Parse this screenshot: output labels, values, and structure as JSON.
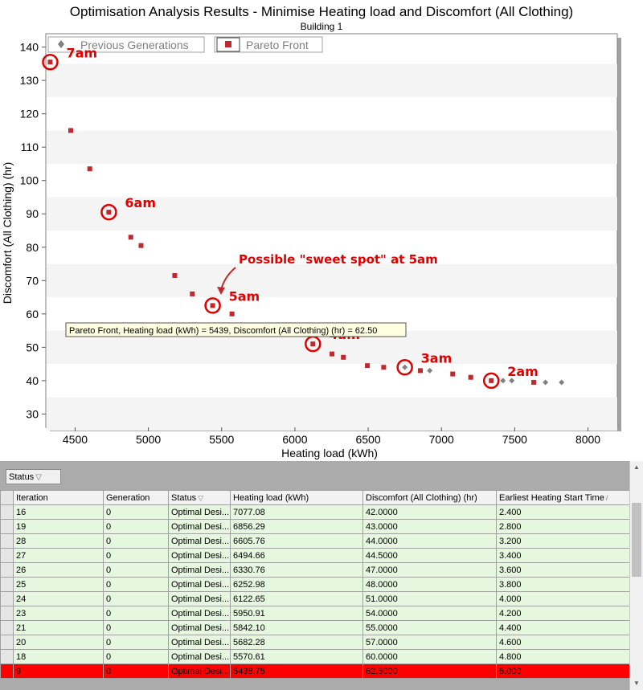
{
  "chart_data": {
    "type": "scatter",
    "title": "Optimisation Analysis Results - Minimise Heating load and Discomfort (All Clothing)",
    "subtitle": "Building 1",
    "xlabel": "Heating load (kWh)",
    "ylabel": "Discomfort (All Clothing) (hr)",
    "xlim": [
      4300,
      8200
    ],
    "ylim": [
      26,
      144
    ],
    "xticks": [
      4500,
      5000,
      5500,
      6000,
      6500,
      7000,
      7500,
      8000
    ],
    "yticks": [
      30,
      40,
      50,
      60,
      70,
      80,
      90,
      100,
      110,
      120,
      130,
      140
    ],
    "grid": "horizontal bands",
    "legend_position": "top-left",
    "legend": [
      "Previous Generations",
      "Pareto Front"
    ],
    "series": [
      {
        "name": "Previous Generations",
        "color": "#808080",
        "marker": "diamond",
        "points": [
          [
            6750,
            44
          ],
          [
            6920,
            43
          ],
          [
            7420,
            40
          ],
          [
            7480,
            40
          ],
          [
            7710,
            39.5
          ],
          [
            7820,
            39.5
          ]
        ]
      },
      {
        "name": "Pareto Front",
        "color": "#c0282d",
        "marker": "square",
        "points": [
          [
            4330,
            135.5
          ],
          [
            4470,
            115
          ],
          [
            4600,
            103.5
          ],
          [
            4730,
            90.5
          ],
          [
            4880,
            83
          ],
          [
            4950,
            80.5
          ],
          [
            5180,
            71.5
          ],
          [
            5300,
            66
          ],
          [
            5438.75,
            62.5
          ],
          [
            5570.61,
            60
          ],
          [
            5950.91,
            54
          ],
          [
            6122.65,
            51
          ],
          [
            6252.98,
            48
          ],
          [
            6330.76,
            47
          ],
          [
            6494.66,
            44.5
          ],
          [
            6605.76,
            44
          ],
          [
            6856.29,
            43
          ],
          [
            7077.08,
            42
          ],
          [
            7200,
            41
          ],
          [
            7340,
            40
          ],
          [
            7630,
            39.5
          ]
        ]
      }
    ],
    "annotations": [
      {
        "label": "7am",
        "x": 4330,
        "y": 135.5
      },
      {
        "label": "6am",
        "x": 4730,
        "y": 90.5
      },
      {
        "label": "5am",
        "x": 5438.75,
        "y": 62.5
      },
      {
        "label": "4am",
        "x": 6122.65,
        "y": 51
      },
      {
        "label": "3am",
        "x": 6750,
        "y": 44
      },
      {
        "label": "2am",
        "x": 7340,
        "y": 40
      }
    ],
    "sweet_spot_note": "Possible \"sweet spot\" at 5am",
    "tooltip": "Pareto Front,  Heating load (kWh) = 5439, Discomfort (All Clothing) (hr) = 62.50",
    "colors": {
      "highlight": "#e00000",
      "annotation_text": "#e00000",
      "tooltip_bg": "#ffffe1"
    }
  },
  "table": {
    "group_by_label": "Status",
    "columns": [
      "Iteration",
      "Generation",
      "Status",
      "Heating load (kWh)",
      "Discomfort (All Clothing) (hr)",
      "Earliest Heating Start Time"
    ],
    "rows": [
      [
        "16",
        "0",
        "Optimal Desi...",
        "7077.08",
        "42.0000",
        "2.400"
      ],
      [
        "19",
        "0",
        "Optimal Desi...",
        "6856.29",
        "43.0000",
        "2.800"
      ],
      [
        "28",
        "0",
        "Optimal Desi...",
        "6605.76",
        "44.0000",
        "3.200"
      ],
      [
        "27",
        "0",
        "Optimal Desi...",
        "6494.66",
        "44.5000",
        "3.400"
      ],
      [
        "26",
        "0",
        "Optimal Desi...",
        "6330.76",
        "47.0000",
        "3.600"
      ],
      [
        "25",
        "0",
        "Optimal Desi...",
        "6252.98",
        "48.0000",
        "3.800"
      ],
      [
        "24",
        "0",
        "Optimal Desi...",
        "6122.65",
        "51.0000",
        "4.000"
      ],
      [
        "23",
        "0",
        "Optimal Desi...",
        "5950.91",
        "54.0000",
        "4.200"
      ],
      [
        "21",
        "0",
        "Optimal Desi...",
        "5842.10",
        "55.0000",
        "4.400"
      ],
      [
        "20",
        "0",
        "Optimal Desi...",
        "5682.28",
        "57.0000",
        "4.600"
      ],
      [
        "18",
        "0",
        "Optimal Desi...",
        "5570.61",
        "60.0000",
        "4.800"
      ],
      [
        "9",
        "0",
        "Optimal Desi...",
        "5438.75",
        "62.5000",
        "5.000"
      ]
    ],
    "selected_iteration": "9",
    "colors": {
      "row_bg": "#e6f7e0",
      "selected_bg": "#ff0000"
    }
  }
}
